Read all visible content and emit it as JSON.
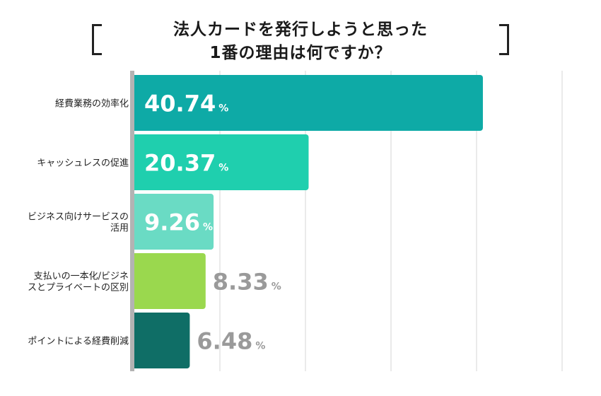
{
  "chart_data": {
    "type": "bar",
    "orientation": "horizontal",
    "title_lines": [
      "法人カードを発行しようと思った",
      "1番の理由は何ですか？"
    ],
    "categories": [
      [
        "経費業務の効率化"
      ],
      [
        "キャッシュレスの促進"
      ],
      [
        "ビジネス向けサービスの",
        "活用"
      ],
      [
        "支払いの一本化/ビジネ",
        "スとプライベートの区別"
      ],
      [
        "ポイントによる経費削減"
      ]
    ],
    "values": [
      40.74,
      20.37,
      9.26,
      8.33,
      6.48
    ],
    "value_labels": [
      "40.74",
      "20.37",
      "9.26",
      "8.33",
      "6.48"
    ],
    "unit": "%",
    "colors": [
      "#0eaaa6",
      "#1fcfae",
      "#6adbc4",
      "#9ad84e",
      "#0f6e66"
    ],
    "label_inside": [
      true,
      true,
      true,
      false,
      false
    ],
    "xlim": [
      0,
      50
    ],
    "grid": true
  }
}
